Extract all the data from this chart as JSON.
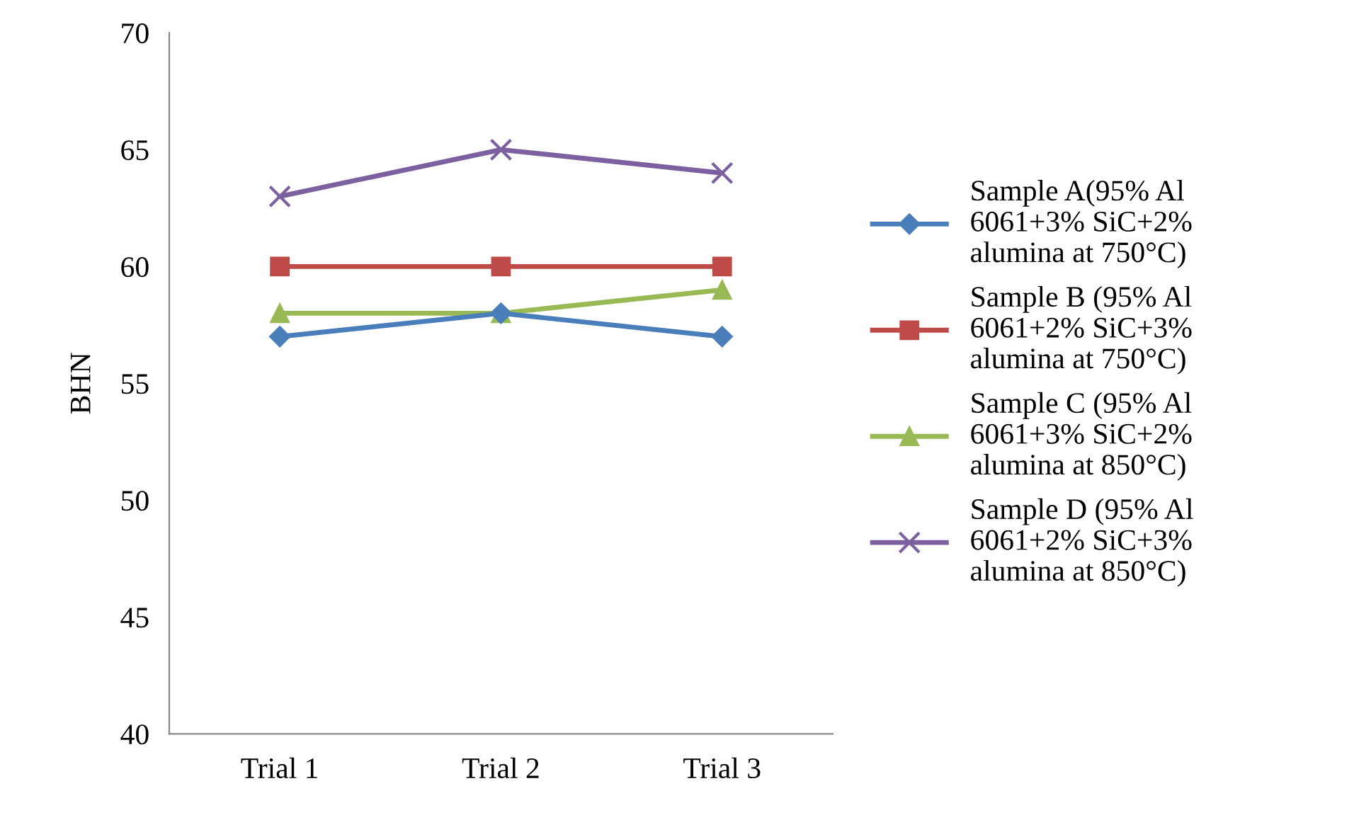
{
  "chart_data": {
    "type": "line",
    "ylabel": "BHN",
    "categories": [
      "Trial 1",
      "Trial 2",
      "Trial 3"
    ],
    "ylim": [
      40,
      70
    ],
    "yticks": [
      40,
      45,
      50,
      55,
      60,
      65,
      70
    ],
    "grid": false,
    "legend": "right",
    "series": [
      {
        "name": "Sample A(95% Al\n6061+3% SiC+2%\nalumina at 750°C)",
        "color": "#4a7ebb",
        "marker": "diamond",
        "values": [
          57,
          58,
          57
        ]
      },
      {
        "name": "Sample B (95% Al\n6061+2% SiC+3%\nalumina at 750°C)",
        "color": "#be4b48",
        "marker": "square",
        "values": [
          60,
          60,
          60
        ]
      },
      {
        "name": "Sample C (95% Al\n6061+3% SiC+2%\nalumina at 850°C)",
        "color": "#98b954",
        "marker": "triangle",
        "values": [
          58,
          58,
          59
        ]
      },
      {
        "name": "Sample D (95% Al\n6061+2% SiC+3%\nalumina at 850°C)",
        "color": "#7d60a0",
        "marker": "cross",
        "values": [
          63,
          65,
          64
        ]
      }
    ]
  }
}
